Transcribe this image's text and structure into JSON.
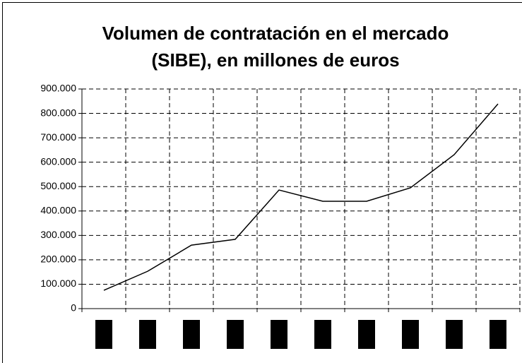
{
  "chart_data": {
    "type": "line",
    "title": "Volumen de contratación en el mercado (SIBE), en millones de euros",
    "categories": [
      null,
      null,
      null,
      null,
      null,
      null,
      null,
      null,
      null,
      null
    ],
    "series": [
      {
        "name": null,
        "color": "#000000",
        "values": [
          75000,
          153000,
          260000,
          284000,
          486000,
          440000,
          440000,
          495000,
          631000,
          839000
        ]
      }
    ],
    "ylim": [
      0,
      900000
    ],
    "yticks": [
      0,
      {
        "value": 100000,
        "label": "100.000"
      },
      {
        "value": 200000,
        "label": "200.000"
      },
      {
        "value": 300000,
        "label": "300.000"
      },
      {
        "value": 400000,
        "label": "400.000"
      },
      {
        "value": 500000,
        "label": "500.000"
      },
      {
        "value": 600000,
        "label": "600.000"
      },
      {
        "value": 700000,
        "label": "700.000"
      },
      {
        "value": 800000,
        "label": "800.000"
      },
      {
        "value": 900000,
        "label": "900.000"
      }
    ],
    "grid": true
  }
}
